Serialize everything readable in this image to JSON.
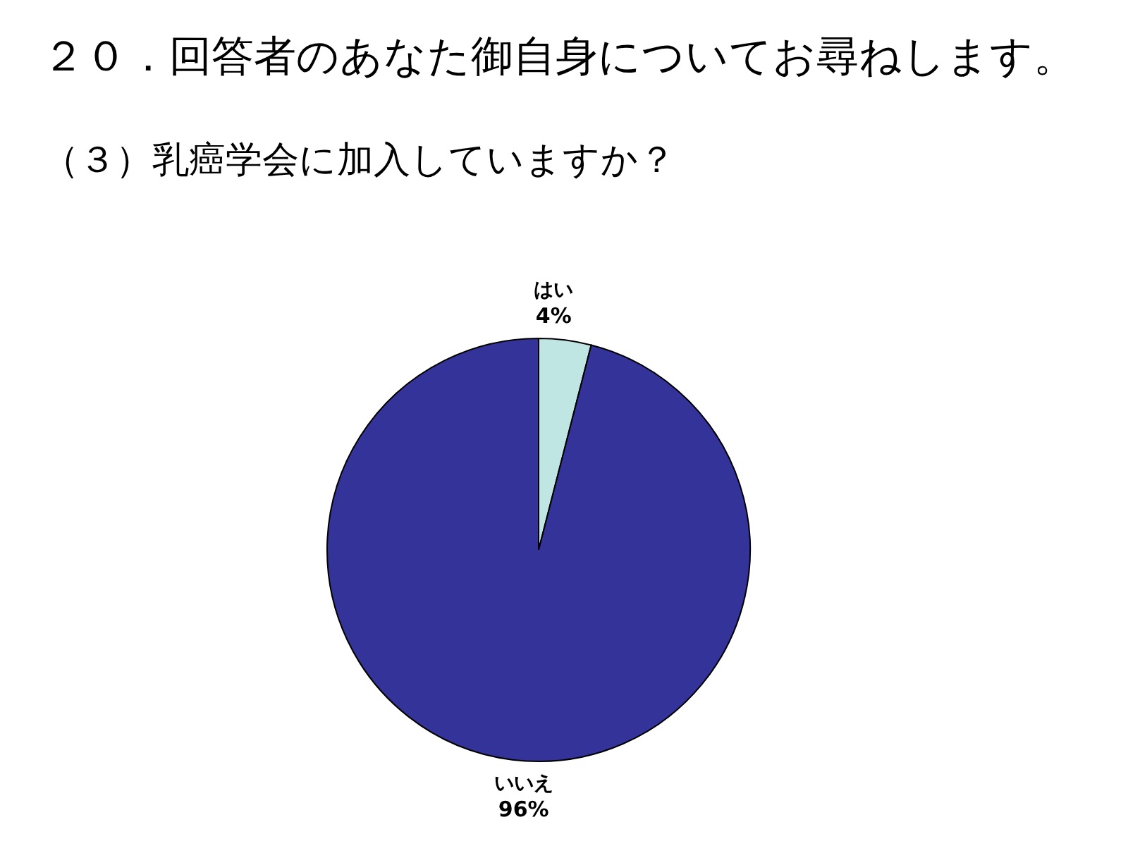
{
  "chart_data": {
    "type": "pie",
    "title": "２０．回答者のあなた御自身についてお尋ねします。",
    "subtitle": "（３）乳癌学会に加入していますか？",
    "categories": [
      "はい",
      "いいえ"
    ],
    "values": [
      4,
      96
    ],
    "colors": [
      "#c0e6e4",
      "#333399"
    ],
    "value_labels": [
      "4%",
      "96%"
    ],
    "legend": false
  }
}
